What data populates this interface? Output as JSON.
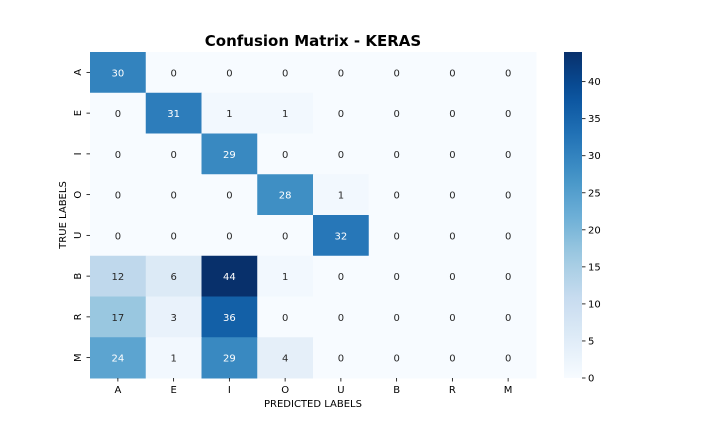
{
  "chart_data": {
    "type": "heatmap",
    "title": "Confusion Matrix - KERAS",
    "xlabel": "PREDICTED LABELS",
    "ylabel": "TRUE LABELS",
    "x_categories": [
      "A",
      "E",
      "I",
      "O",
      "U",
      "B",
      "R",
      "M"
    ],
    "y_categories": [
      "A",
      "E",
      "I",
      "O",
      "U",
      "B",
      "R",
      "M"
    ],
    "values": [
      [
        30,
        0,
        0,
        0,
        0,
        0,
        0,
        0
      ],
      [
        0,
        31,
        1,
        1,
        0,
        0,
        0,
        0
      ],
      [
        0,
        0,
        29,
        0,
        0,
        0,
        0,
        0
      ],
      [
        0,
        0,
        0,
        28,
        1,
        0,
        0,
        0
      ],
      [
        0,
        0,
        0,
        0,
        32,
        0,
        0,
        0
      ],
      [
        12,
        6,
        44,
        1,
        0,
        0,
        0,
        0
      ],
      [
        17,
        3,
        36,
        0,
        0,
        0,
        0,
        0
      ],
      [
        24,
        1,
        29,
        4,
        0,
        0,
        0,
        0
      ]
    ],
    "colormap": "Blues",
    "colorbar": {
      "range": [
        0,
        44
      ],
      "ticks": [
        0,
        5,
        10,
        15,
        20,
        25,
        30,
        35,
        40
      ]
    }
  }
}
